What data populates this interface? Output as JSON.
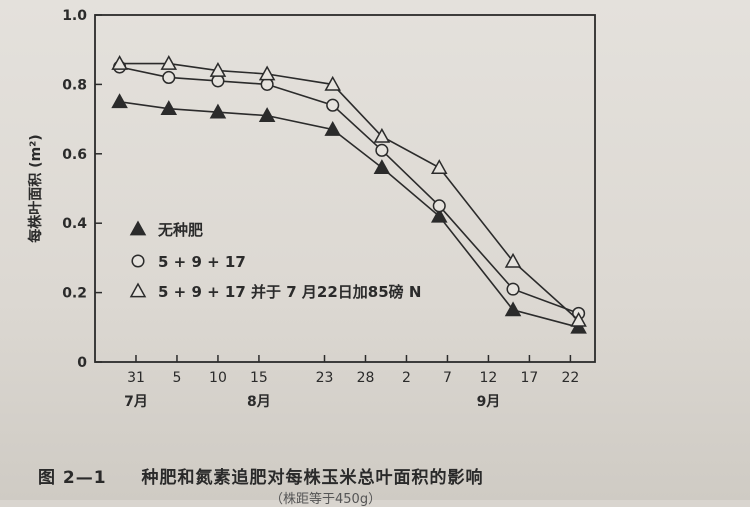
{
  "caption": {
    "number": "图 2—1",
    "text": "种肥和氮素追肥对每株玉米总叶面积的影响",
    "sub": "（株距等于450g）"
  },
  "chart_data": {
    "type": "line",
    "ylabel": "每株叶面积 (m²)",
    "xlabel": "",
    "ylim": [
      0,
      1.0
    ],
    "yticks": [
      "0",
      "0.2",
      "0.4",
      "0.6",
      "0.8",
      "1.0"
    ],
    "ytick_values": [
      0,
      0.2,
      0.4,
      0.6,
      0.8,
      1.0
    ],
    "xticks": [
      "31",
      "5",
      "10",
      "15",
      "23",
      "28",
      "2",
      "7",
      "12",
      "17",
      "22"
    ],
    "xtick_values": [
      -1,
      4,
      9,
      14,
      22,
      27,
      32,
      37,
      42,
      47,
      52
    ],
    "xlim": [
      -6,
      55
    ],
    "month_labels": [
      {
        "label": "7月",
        "x": -1
      },
      {
        "label": "8月",
        "x": 14
      },
      {
        "label": "9月",
        "x": 42
      }
    ],
    "grid": false,
    "legend_position": "center-left",
    "series": [
      {
        "name": "无种肥",
        "marker": "filled-triangle",
        "x": [
          -3,
          3,
          9,
          15,
          23,
          29,
          36,
          45,
          53
        ],
        "values": [
          0.75,
          0.73,
          0.72,
          0.71,
          0.67,
          0.56,
          0.42,
          0.15,
          0.1
        ]
      },
      {
        "name": "5 + 9 + 17",
        "marker": "open-circle",
        "x": [
          -3,
          3,
          9,
          15,
          23,
          29,
          36,
          45,
          53
        ],
        "values": [
          0.85,
          0.82,
          0.81,
          0.8,
          0.74,
          0.61,
          0.45,
          0.21,
          0.14
        ]
      },
      {
        "name": "5 + 9 + 17 并于 7 月22日加85磅 N",
        "marker": "open-triangle",
        "x": [
          -3,
          3,
          9,
          15,
          23,
          29,
          36,
          45,
          53
        ],
        "values": [
          0.86,
          0.86,
          0.84,
          0.83,
          0.8,
          0.65,
          0.56,
          0.29,
          0.12
        ]
      }
    ]
  }
}
